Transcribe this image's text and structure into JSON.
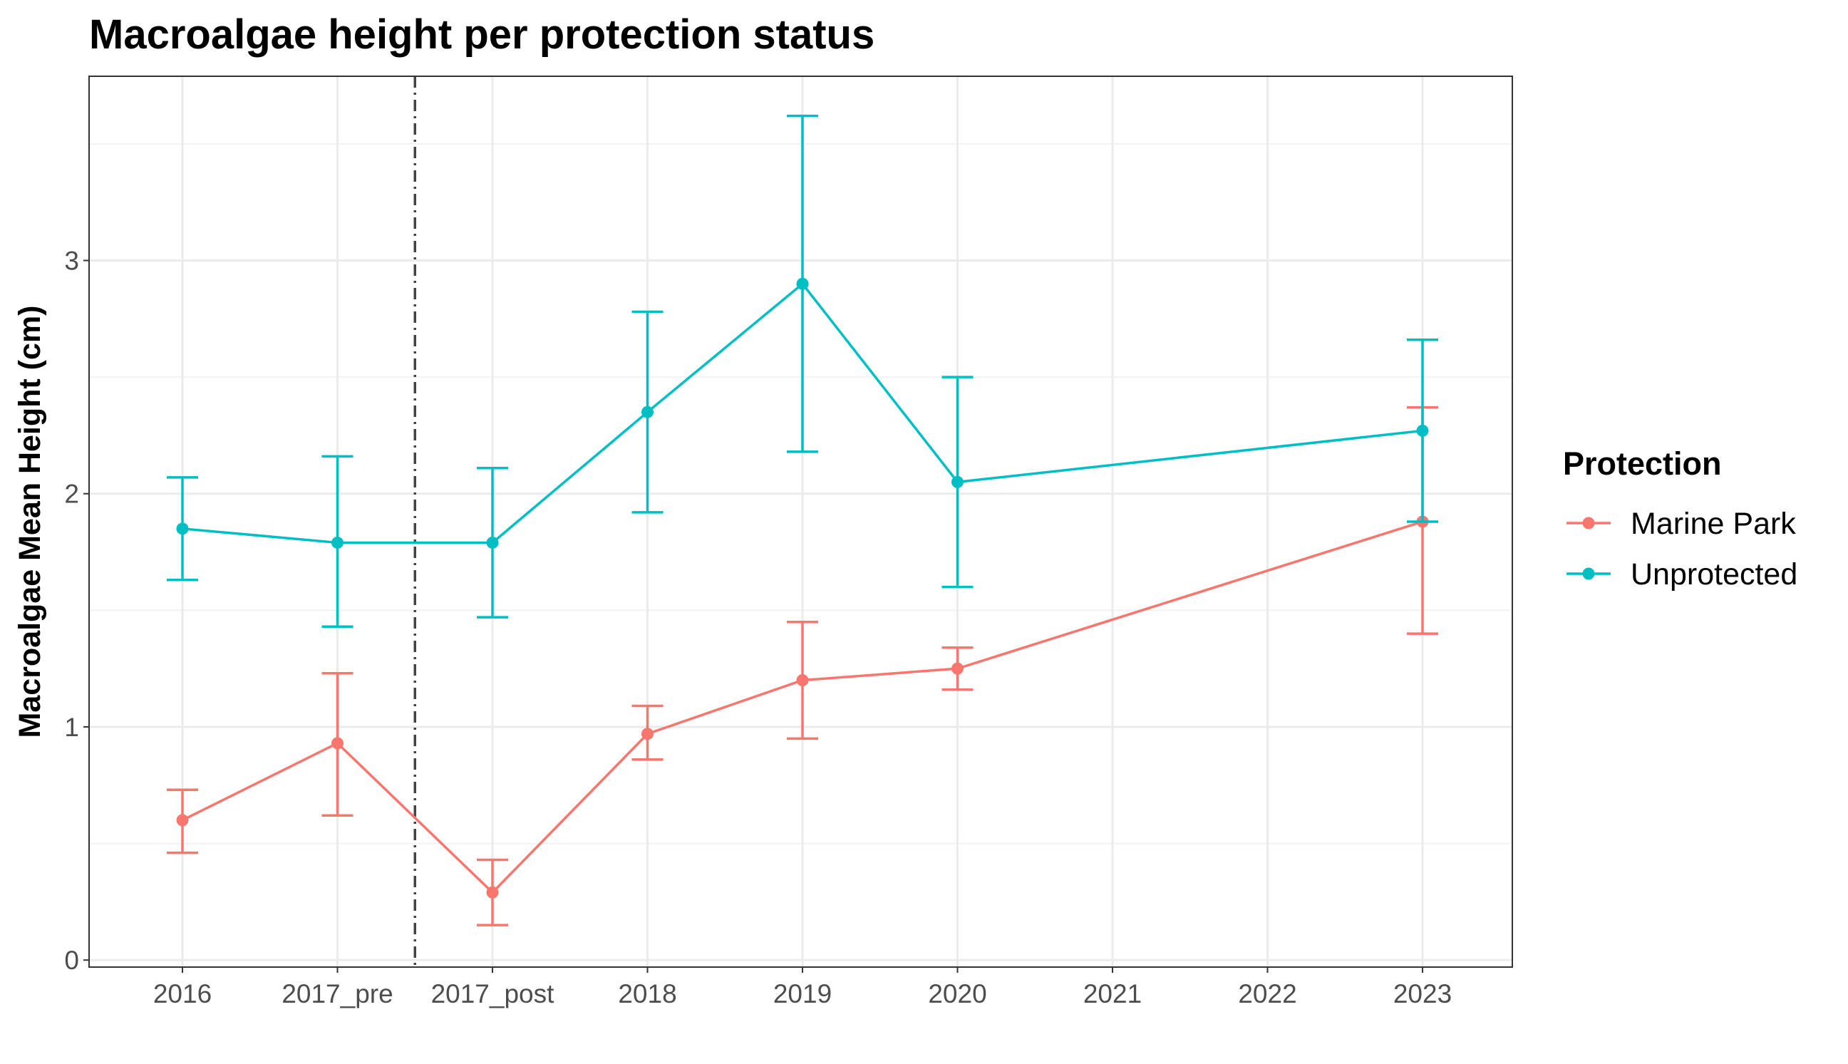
{
  "chart_data": {
    "type": "line",
    "title": "Macroalgae height per protection status",
    "xlabel": "",
    "ylabel": "Macroalgae Mean Height (cm)",
    "categories": [
      "2016",
      "2017_pre",
      "2017_post",
      "2018",
      "2019",
      "2020",
      "2021",
      "2022",
      "2023"
    ],
    "yticks": [
      "0",
      "1",
      "2",
      "3"
    ],
    "ylim": [
      -0.03,
      3.79
    ],
    "grid": true,
    "legend": {
      "title": "Protection",
      "position": "right"
    },
    "reference_line": {
      "between": [
        "2017_pre",
        "2017_post"
      ],
      "style": "dashdot",
      "color": "#444444"
    },
    "series": [
      {
        "name": "Marine Park",
        "color": "#F8766D",
        "x": [
          "2016",
          "2017_pre",
          "2017_post",
          "2018",
          "2019",
          "2020",
          "2023"
        ],
        "y": [
          0.6,
          0.93,
          0.29,
          0.97,
          1.2,
          1.25,
          1.88
        ],
        "lower": [
          0.46,
          0.62,
          0.15,
          0.86,
          0.95,
          1.16,
          1.4
        ],
        "upper": [
          0.73,
          1.23,
          0.43,
          1.09,
          1.45,
          1.34,
          2.37
        ]
      },
      {
        "name": "Unprotected",
        "color": "#00BFC4",
        "x": [
          "2016",
          "2017_pre",
          "2017_post",
          "2018",
          "2019",
          "2020",
          "2023"
        ],
        "y": [
          1.85,
          1.79,
          1.79,
          2.35,
          2.9,
          2.05,
          2.27
        ],
        "lower": [
          1.63,
          1.43,
          1.47,
          1.92,
          2.18,
          1.6,
          1.88
        ],
        "upper": [
          2.07,
          2.16,
          2.11,
          2.78,
          3.62,
          2.5,
          2.66
        ]
      }
    ]
  }
}
